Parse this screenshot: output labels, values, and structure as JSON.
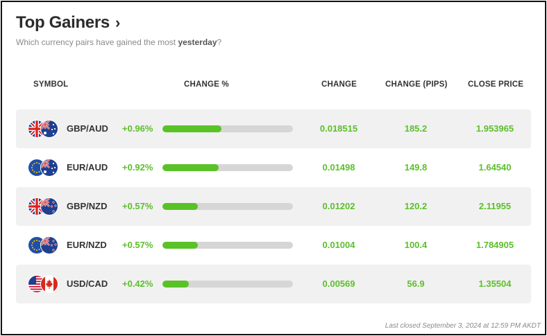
{
  "header": {
    "title": "Top Gainers",
    "subtitle_prefix": "Which currency pairs have gained the most ",
    "subtitle_emphasis": "yesterday",
    "subtitle_suffix": "?"
  },
  "columns": {
    "symbol": "SYMBOL",
    "change_pct": "CHANGE %",
    "change": "CHANGE",
    "change_pips": "CHANGE (PIPS)",
    "close_price": "CLOSE PRICE"
  },
  "rows": [
    {
      "symbol": "GBP/AUD",
      "flags": [
        "uk-flag-icon",
        "australia-flag-icon"
      ],
      "change_pct": "+0.96%",
      "bar_fraction": 0.45,
      "change": "0.018515",
      "pips": "185.2",
      "close": "1.953965"
    },
    {
      "symbol": "EUR/AUD",
      "flags": [
        "eu-flag-icon",
        "australia-flag-icon"
      ],
      "change_pct": "+0.92%",
      "bar_fraction": 0.43,
      "change": "0.01498",
      "pips": "149.8",
      "close": "1.64540"
    },
    {
      "symbol": "GBP/NZD",
      "flags": [
        "uk-flag-icon",
        "new-zealand-flag-icon"
      ],
      "change_pct": "+0.57%",
      "bar_fraction": 0.27,
      "change": "0.01202",
      "pips": "120.2",
      "close": "2.11955"
    },
    {
      "symbol": "EUR/NZD",
      "flags": [
        "eu-flag-icon",
        "new-zealand-flag-icon"
      ],
      "change_pct": "+0.57%",
      "bar_fraction": 0.27,
      "change": "0.01004",
      "pips": "100.4",
      "close": "1.784905"
    },
    {
      "symbol": "USD/CAD",
      "flags": [
        "us-flag-icon",
        "canada-flag-icon"
      ],
      "change_pct": "+0.42%",
      "bar_fraction": 0.2,
      "change": "0.00569",
      "pips": "56.9",
      "close": "1.35504"
    }
  ],
  "footer": "Last closed September 3, 2024 at 12:59 PM AKDT",
  "colors": {
    "positive": "#5cbf2a",
    "bar_fill": "#59c226",
    "bar_track": "#d6d6d6",
    "row_shade": "#f1f1f1"
  }
}
